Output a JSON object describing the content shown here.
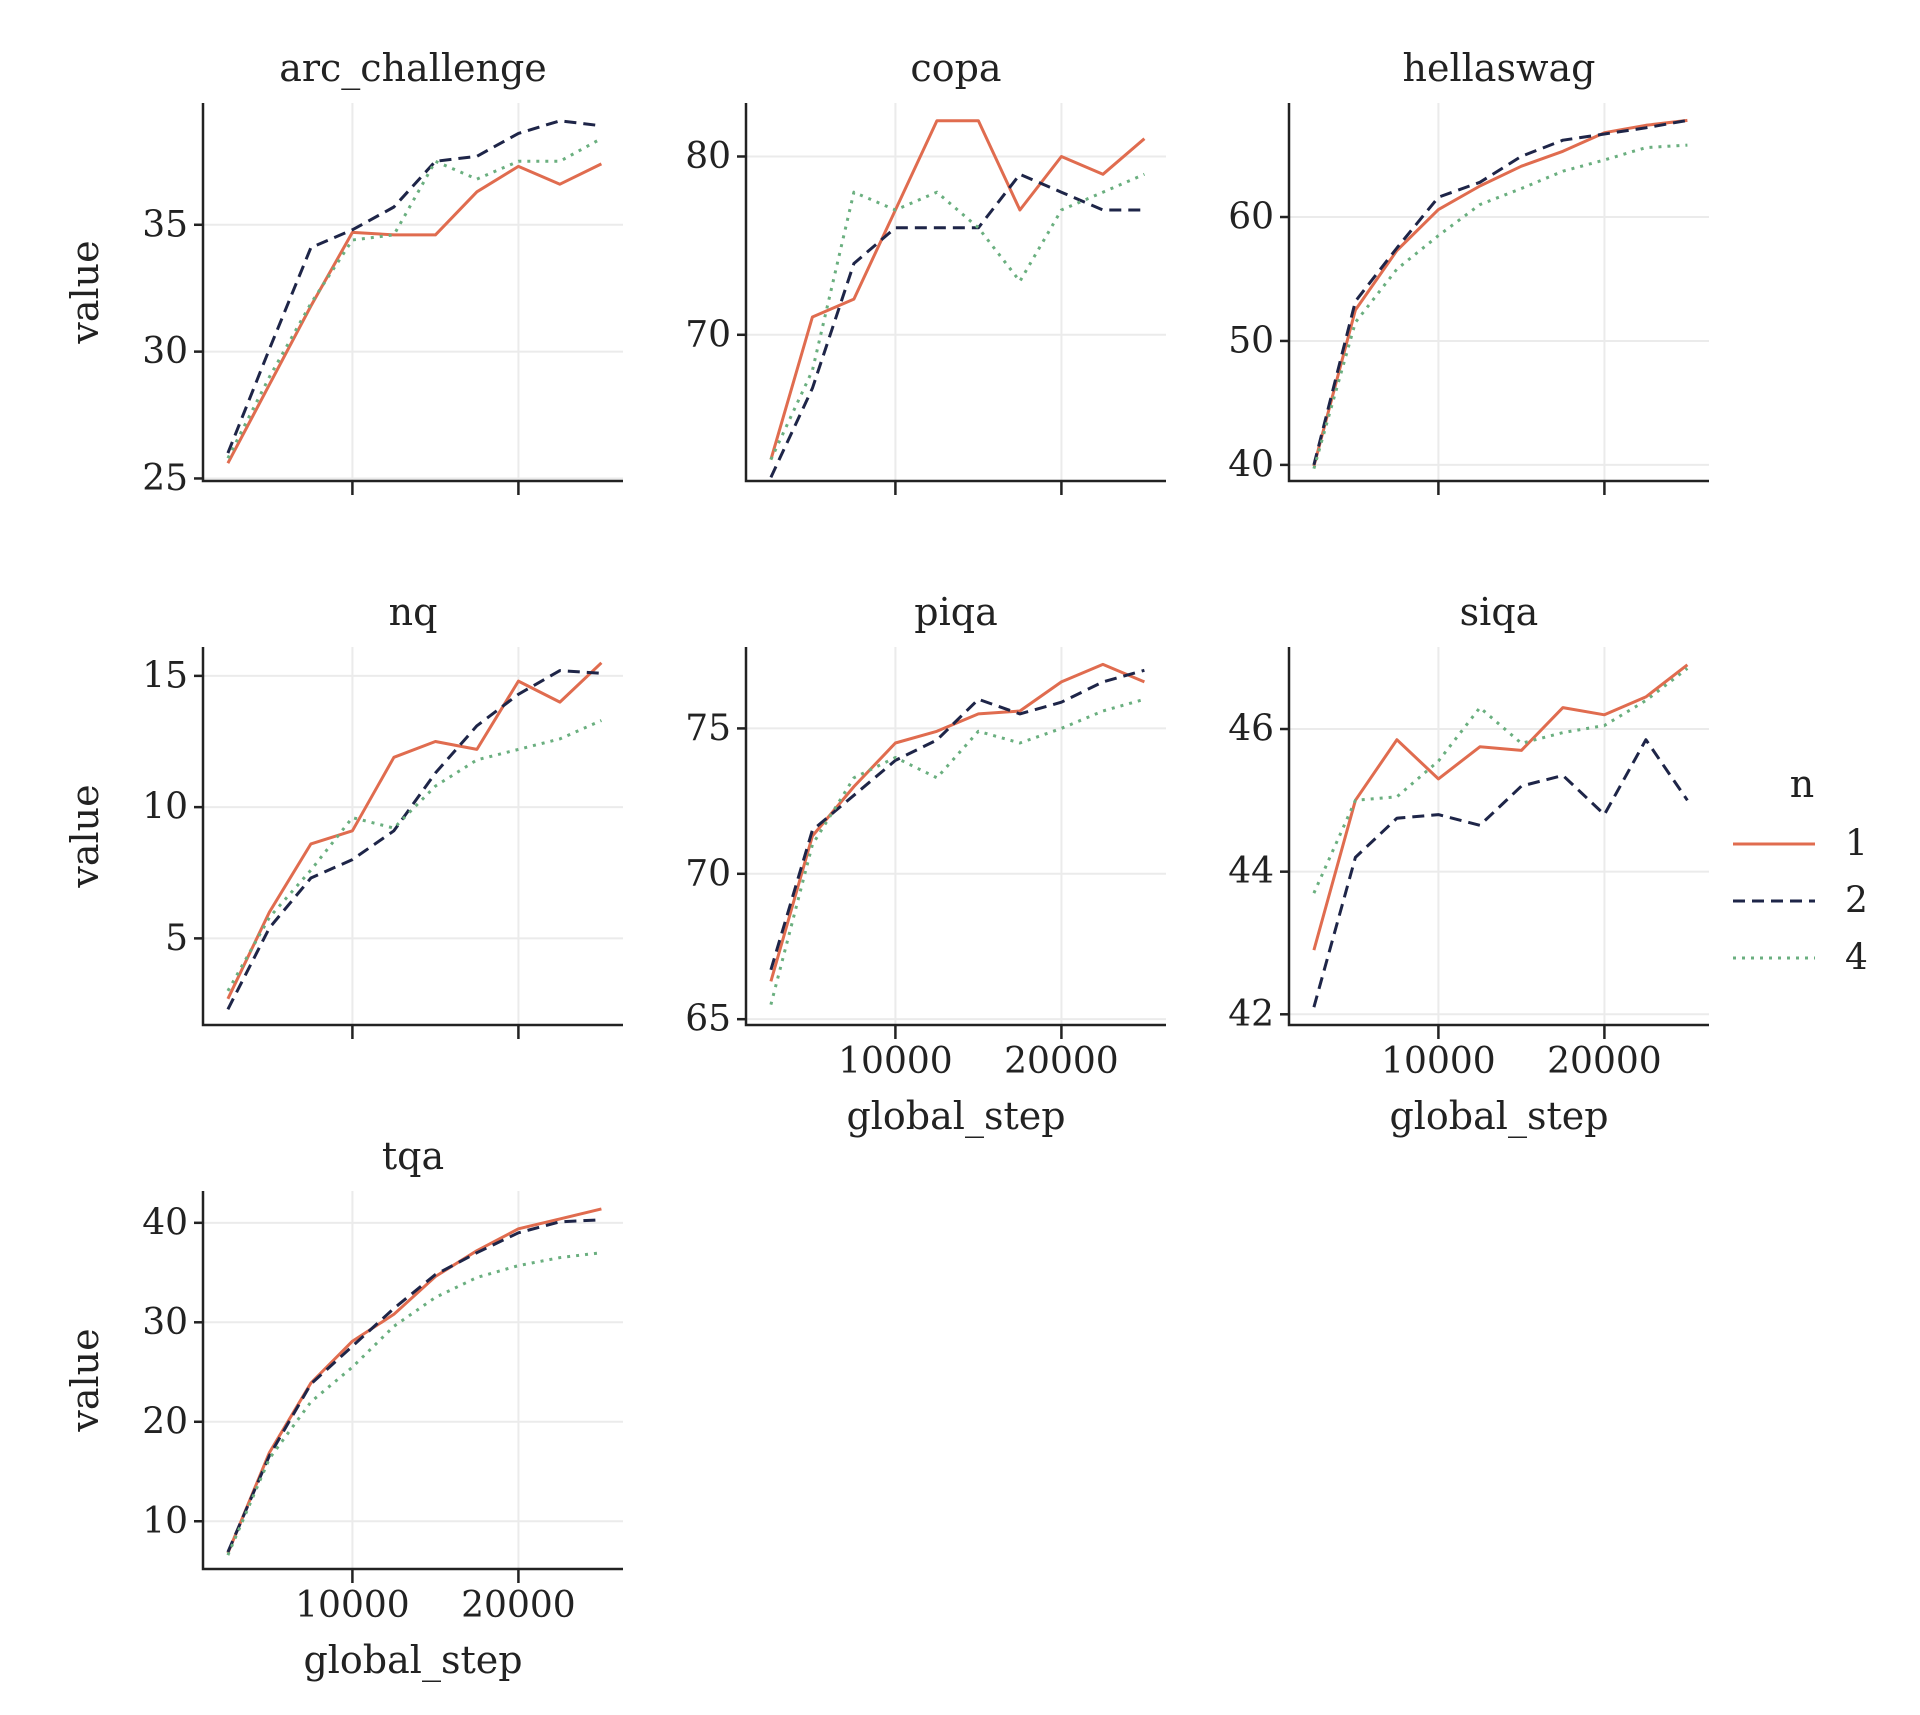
{
  "legend": {
    "title": "n",
    "entries": [
      {
        "label": "1",
        "color": "#e06c4f",
        "dash": "solid"
      },
      {
        "label": "2",
        "color": "#1e2548",
        "dash": "dashed"
      },
      {
        "label": "4",
        "color": "#6aaf7f",
        "dash": "dotted"
      }
    ]
  },
  "chart_data": [
    {
      "type": "line",
      "title": "arc_challenge",
      "xlabel": "",
      "ylabel": "value",
      "xlim": [
        1000,
        26300
      ],
      "ylim": [
        24.9,
        39.8
      ],
      "xticks": [
        10000,
        20000
      ],
      "yticks": [
        25,
        30,
        35
      ],
      "x": [
        2500,
        5000,
        7500,
        10000,
        12500,
        15000,
        17500,
        20000,
        22500,
        25000
      ],
      "series": [
        {
          "name": "1",
          "values": [
            25.6,
            28.7,
            31.8,
            34.7,
            34.6,
            34.6,
            36.3,
            37.3,
            36.6,
            37.4
          ]
        },
        {
          "name": "2",
          "values": [
            26.0,
            30.1,
            34.1,
            34.8,
            35.7,
            37.5,
            37.7,
            38.6,
            39.1,
            38.9
          ]
        },
        {
          "name": "4",
          "values": [
            25.8,
            29.0,
            31.9,
            34.4,
            34.6,
            37.5,
            36.8,
            37.5,
            37.5,
            38.4
          ]
        }
      ]
    },
    {
      "type": "line",
      "title": "copa",
      "xlabel": "",
      "ylabel": "",
      "xlim": [
        1000,
        26300
      ],
      "ylim": [
        61.8,
        83.0
      ],
      "xticks": [
        10000,
        20000
      ],
      "yticks": [
        70,
        80
      ],
      "x": [
        2500,
        5000,
        7500,
        10000,
        12500,
        15000,
        17500,
        20000,
        22500,
        25000
      ],
      "series": [
        {
          "name": "1",
          "values": [
            63,
            71,
            72,
            77,
            82,
            82,
            77,
            80,
            79,
            81
          ]
        },
        {
          "name": "2",
          "values": [
            62,
            67,
            74,
            76,
            76,
            76,
            79,
            78,
            77,
            77
          ]
        },
        {
          "name": "4",
          "values": [
            63,
            68,
            78,
            77,
            78,
            76,
            73,
            77,
            78,
            79
          ]
        }
      ]
    },
    {
      "type": "line",
      "title": "hellaswag",
      "xlabel": "",
      "ylabel": "",
      "xlim": [
        1000,
        26300
      ],
      "ylim": [
        38.7,
        69.2
      ],
      "xticks": [
        10000,
        20000
      ],
      "yticks": [
        40,
        50,
        60
      ],
      "x": [
        2500,
        5000,
        7500,
        10000,
        12500,
        15000,
        17500,
        20000,
        22500,
        25000
      ],
      "series": [
        {
          "name": "1",
          "values": [
            39.9,
            52.5,
            57.3,
            60.6,
            62.5,
            64.1,
            65.3,
            66.8,
            67.4,
            67.8
          ]
        },
        {
          "name": "2",
          "values": [
            40.0,
            53.2,
            57.5,
            61.6,
            62.8,
            64.9,
            66.2,
            66.7,
            67.2,
            67.8
          ]
        },
        {
          "name": "4",
          "values": [
            39.7,
            51.5,
            55.8,
            58.5,
            61.0,
            62.3,
            63.7,
            64.6,
            65.6,
            65.8
          ]
        }
      ]
    },
    {
      "type": "line",
      "title": "nq",
      "xlabel": "",
      "ylabel": "value",
      "xlim": [
        1000,
        26300
      ],
      "ylim": [
        1.7,
        16.1
      ],
      "xticks": [
        10000,
        20000
      ],
      "yticks": [
        5,
        10,
        15
      ],
      "x": [
        2500,
        5000,
        7500,
        10000,
        12500,
        15000,
        17500,
        20000,
        22500,
        25000
      ],
      "series": [
        {
          "name": "1",
          "values": [
            2.7,
            6.0,
            8.6,
            9.1,
            11.9,
            12.5,
            12.2,
            14.8,
            14.0,
            15.5
          ]
        },
        {
          "name": "2",
          "values": [
            2.3,
            5.4,
            7.3,
            8.0,
            9.1,
            11.3,
            13.1,
            14.3,
            15.2,
            15.1
          ]
        },
        {
          "name": "4",
          "values": [
            3.0,
            5.8,
            7.6,
            9.6,
            9.2,
            10.8,
            11.8,
            12.2,
            12.6,
            13.3
          ]
        }
      ]
    },
    {
      "type": "line",
      "title": "piqa",
      "xlabel": "global_step",
      "ylabel": "",
      "xlim": [
        1000,
        26300
      ],
      "ylim": [
        64.8,
        77.8
      ],
      "xticks": [
        10000,
        20000
      ],
      "yticks": [
        65,
        70,
        75
      ],
      "x": [
        2500,
        5000,
        7500,
        10000,
        12500,
        15000,
        17500,
        20000,
        22500,
        25000
      ],
      "series": [
        {
          "name": "1",
          "values": [
            66.3,
            71.3,
            73.0,
            74.5,
            74.9,
            75.5,
            75.6,
            76.6,
            77.2,
            76.6
          ]
        },
        {
          "name": "2",
          "values": [
            66.7,
            71.5,
            72.7,
            73.9,
            74.6,
            76.0,
            75.5,
            75.9,
            76.6,
            77.0
          ]
        },
        {
          "name": "4",
          "values": [
            65.5,
            71.0,
            73.3,
            74.0,
            73.3,
            74.9,
            74.5,
            75.0,
            75.6,
            76.0
          ]
        }
      ]
    },
    {
      "type": "line",
      "title": "siqa",
      "xlabel": "global_step",
      "ylabel": "",
      "xlim": [
        1000,
        26300
      ],
      "ylim": [
        41.85,
        47.15
      ],
      "xticks": [
        10000,
        20000
      ],
      "yticks": [
        42,
        44,
        46
      ],
      "x": [
        2500,
        5000,
        7500,
        10000,
        12500,
        15000,
        17500,
        20000,
        22500,
        25000
      ],
      "series": [
        {
          "name": "1",
          "values": [
            42.9,
            45.0,
            45.85,
            45.3,
            45.75,
            45.7,
            46.3,
            46.2,
            46.45,
            46.9
          ]
        },
        {
          "name": "2",
          "values": [
            42.1,
            44.2,
            44.75,
            44.8,
            44.65,
            45.2,
            45.35,
            44.8,
            45.85,
            45.0
          ]
        },
        {
          "name": "4",
          "values": [
            43.7,
            45.0,
            45.05,
            45.55,
            46.3,
            45.8,
            45.95,
            46.05,
            46.4,
            46.85
          ]
        }
      ]
    },
    {
      "type": "line",
      "title": "tqa",
      "xlabel": "global_step",
      "ylabel": "value",
      "xlim": [
        1000,
        26300
      ],
      "ylim": [
        5.2,
        43.2
      ],
      "xticks": [
        10000,
        20000
      ],
      "yticks": [
        10,
        20,
        30,
        40
      ],
      "x": [
        2500,
        5000,
        7500,
        10000,
        12500,
        15000,
        17500,
        20000,
        22500,
        25000
      ],
      "series": [
        {
          "name": "1",
          "values": [
            6.8,
            16.9,
            23.9,
            28.1,
            30.8,
            34.6,
            37.2,
            39.4,
            40.4,
            41.4
          ]
        },
        {
          "name": "2",
          "values": [
            6.9,
            16.6,
            23.8,
            27.6,
            31.4,
            34.8,
            37.0,
            39.0,
            40.1,
            40.3
          ]
        },
        {
          "name": "4",
          "values": [
            6.6,
            16.3,
            22.0,
            25.5,
            29.6,
            32.5,
            34.5,
            35.7,
            36.5,
            37.0
          ]
        }
      ]
    }
  ]
}
